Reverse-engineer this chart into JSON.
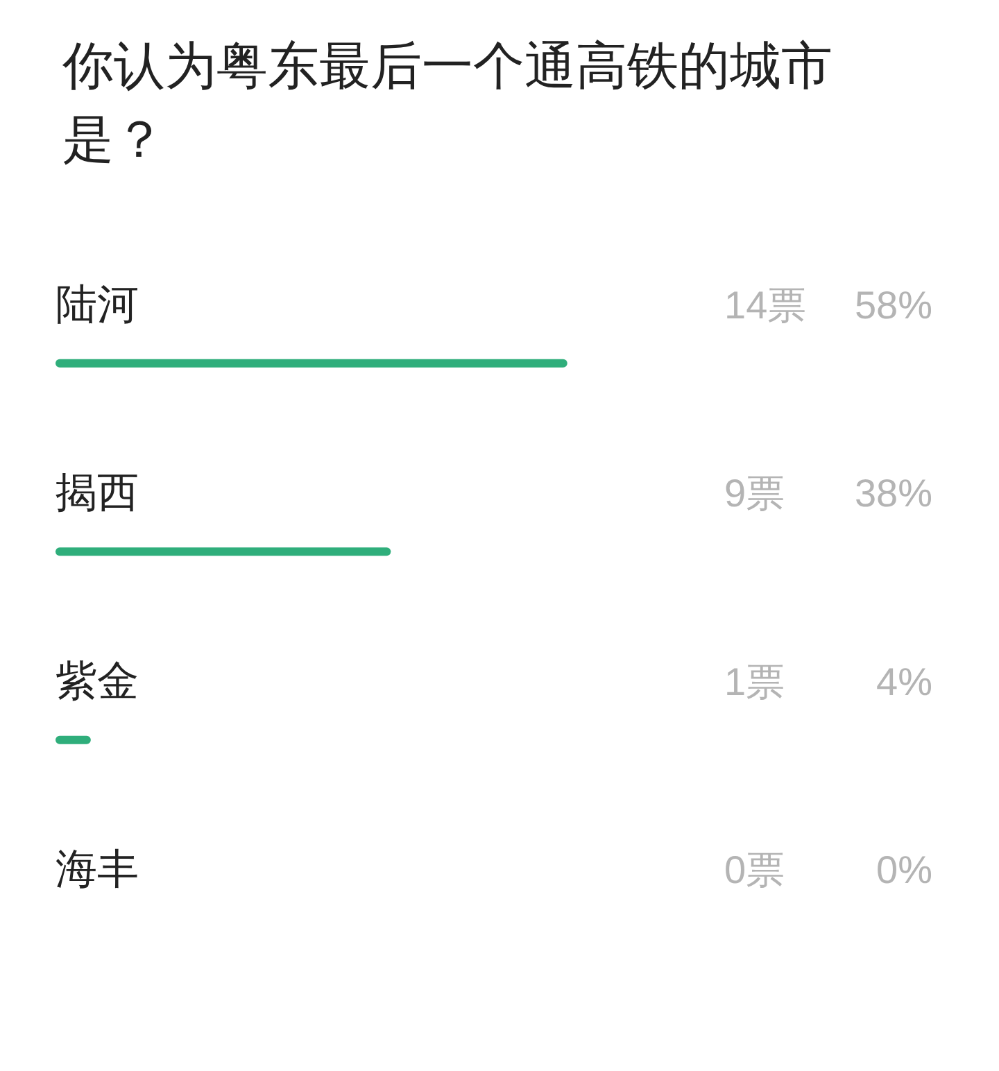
{
  "chart_data": {
    "type": "bar",
    "orientation": "horizontal",
    "title": "你认为粤东最后一个通高铁的城市是？",
    "categories": [
      "陆河",
      "揭西",
      "紫金",
      "海丰"
    ],
    "values": [
      58,
      38,
      4,
      0
    ],
    "color": "#2fae7b",
    "value_labels": [
      "58%",
      "38%",
      "4%",
      "0%"
    ],
    "annotations": [
      "14票",
      "9票",
      "1票",
      "0票"
    ],
    "tick_labels": "y",
    "grid": false
  }
}
